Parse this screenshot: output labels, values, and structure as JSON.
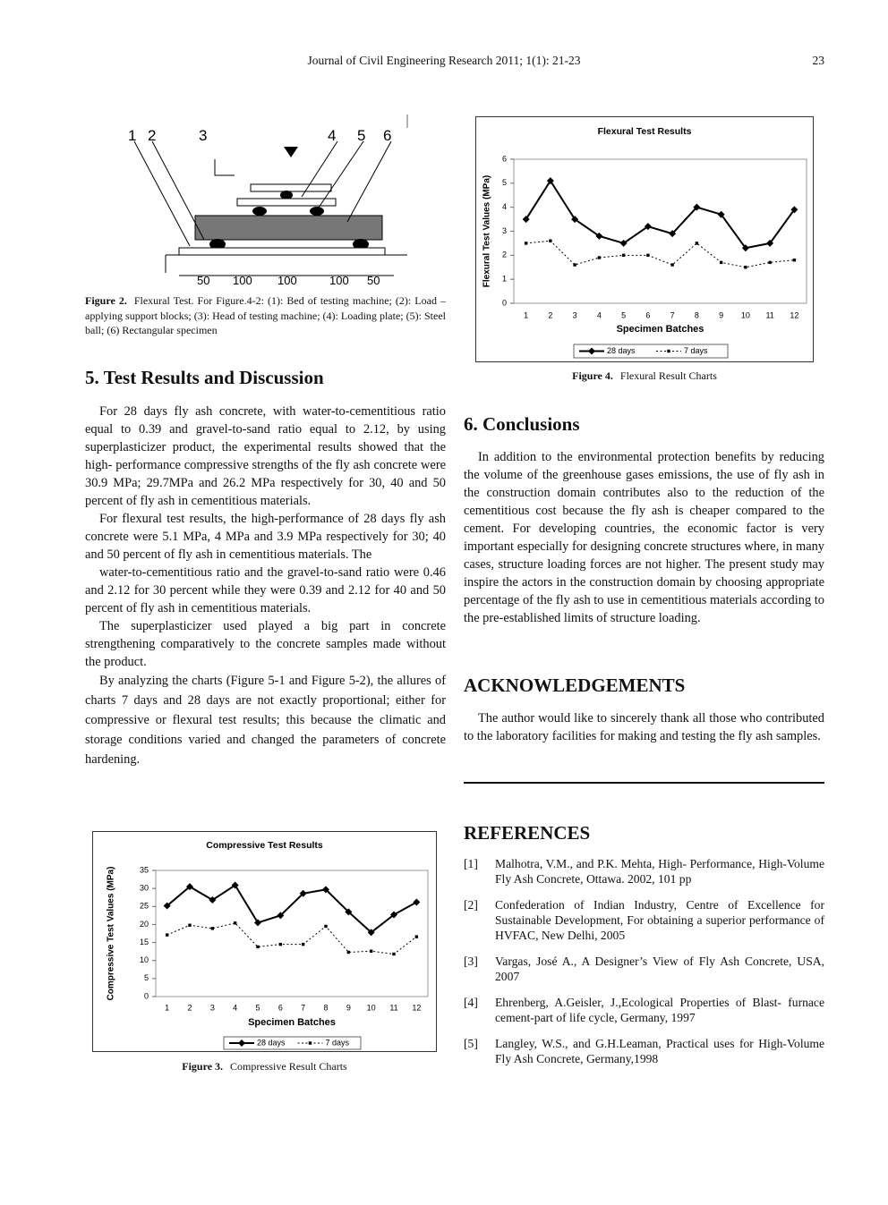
{
  "header": {
    "journal": "Journal of Civil Engineering Research 2011; 1(1): 21-23",
    "page": "23"
  },
  "figure2": {
    "labels": [
      "1",
      "2",
      "3",
      "4",
      "5",
      "6"
    ],
    "dimensions": [
      "50",
      "100",
      "100",
      "100",
      "50"
    ],
    "caption_label": "Figure 2.",
    "caption": "Flexural Test. For Figure.4-2: (1): Bed of testing machine; (2): Load –applying support blocks; (3): Head of testing machine; (4): Loading plate; (5): Steel ball; (6) Rectangular specimen"
  },
  "section5": {
    "heading": "5. Test Results and Discussion",
    "paragraphs": [
      "For 28 days fly ash concrete, with water-to-cementitious ratio equal to 0.39 and gravel-to-sand ratio equal to 2.12, by using superplasticizer product, the experimental results showed that the high- performance compressive strengths of the fly ash concrete were 30.9 MPa; 29.7MPa and 26.2 MPa respectively for 30, 40 and 50 percent of fly ash in cementitious materials.",
      "For flexural test results, the high-performance of 28 days fly ash concrete were 5.1 MPa, 4 MPa and 3.9 MPa respectively for 30; 40 and 50 percent of fly ash in cementitious materials. The",
      "water-to-cementitious ratio and the gravel-to-sand ratio were 0.46 and 2.12 for 30 percent while they were 0.39 and 2.12 for 40 and 50 percent of fly ash in cementitious materials.",
      "The superplasticizer used played a big part in concrete strengthening comparatively to the concrete samples made without the product.",
      "By analyzing the charts (Figure 5-1 and Figure 5-2), the allures of charts 7 days and 28 days are not exactly proportional; either for compressive or flexural test results; this because the climatic and storage conditions varied and changed the parameters of concrete hardening."
    ]
  },
  "figure3": {
    "label": "Figure 3.",
    "caption": "Compressive Result Charts"
  },
  "figure4": {
    "label": "Figure 4.",
    "caption": "Flexural Result Charts"
  },
  "chart_data": [
    {
      "type": "line",
      "title": "Flexural Test Results",
      "xlabel": "Specimen Batches",
      "ylabel": "Flexural Test Values (MPa)",
      "categories": [
        "1",
        "2",
        "3",
        "4",
        "5",
        "6",
        "7",
        "8",
        "9",
        "10",
        "11",
        "12"
      ],
      "ylim": [
        0,
        6
      ],
      "yticks": [
        0,
        1,
        2,
        3,
        4,
        5,
        6
      ],
      "grid": false,
      "legend": "bottom",
      "series": [
        {
          "name": "28 days",
          "color": "#000000",
          "marker": "diamond",
          "dash": "solid",
          "values": [
            3.5,
            5.1,
            3.5,
            2.8,
            2.5,
            3.2,
            2.9,
            4.0,
            3.7,
            2.3,
            2.5,
            3.9
          ]
        },
        {
          "name": "7 days",
          "color": "#000000",
          "marker": "square",
          "dash": "dotted",
          "values": [
            2.5,
            2.6,
            1.6,
            1.9,
            2.0,
            2.0,
            1.6,
            2.5,
            1.7,
            1.5,
            1.7,
            1.8
          ]
        }
      ]
    },
    {
      "type": "line",
      "title": "Compressive Test Results",
      "xlabel": "Specimen Batches",
      "ylabel": "Compressive Test Values (MPa)",
      "categories": [
        "1",
        "2",
        "3",
        "4",
        "5",
        "6",
        "7",
        "8",
        "9",
        "10",
        "11",
        "12"
      ],
      "ylim": [
        0,
        35
      ],
      "yticks": [
        0,
        5,
        10,
        15,
        20,
        25,
        30,
        35
      ],
      "grid": false,
      "legend": "bottom",
      "series": [
        {
          "name": "28 days",
          "color": "#000000",
          "marker": "diamond",
          "dash": "solid",
          "values": [
            25.2,
            30.5,
            26.8,
            30.9,
            20.5,
            22.5,
            28.6,
            29.7,
            23.5,
            17.8,
            22.7,
            26.2
          ]
        },
        {
          "name": "7 days",
          "color": "#000000",
          "marker": "square",
          "dash": "dotted",
          "values": [
            17.1,
            19.8,
            18.9,
            20.4,
            13.8,
            14.5,
            14.5,
            19.5,
            12.3,
            12.6,
            11.8,
            16.6
          ]
        }
      ]
    }
  ],
  "section6": {
    "heading": "6. Conclusions",
    "paragraphs": [
      "In addition to the environmental protection benefits by reducing the volume of the greenhouse gases emissions, the use of fly ash in the construction domain contributes also to the reduction of the cementitious cost because the fly ash is cheaper compared to the cement. For developing countries, the economic factor is very important especially for designing concrete structures where, in many cases, structure loading forces are not higher. The present study may inspire the actors in the construction domain by choosing appropriate percentage of the fly ash to use in cementitious materials according to the pre-established limits of structure loading."
    ]
  },
  "acknowledgements": {
    "heading": "ACKNOWLEDGEMENTS",
    "paragraphs": [
      "The author would like to sincerely thank all those who contributed to the laboratory facilities for making and testing the fly ash samples."
    ]
  },
  "references": {
    "heading": "REFERENCES",
    "items": [
      {
        "num": "[1]",
        "text": "Malhotra, V.M., and P.K. Mehta, High- Performance, High-Volume Fly Ash Concrete, Ottawa. 2002, 101 pp"
      },
      {
        "num": "[2]",
        "text": "Confederation of Indian Industry, Centre of Excellence for Sustainable Development, For obtaining a superior performance of HVFAC, New Delhi, 2005"
      },
      {
        "num": "[3]",
        "text": "Vargas, José A., A Designer’s View of Fly Ash Concrete, USA, 2007"
      },
      {
        "num": "[4]",
        "text": "Ehrenberg, A.Geisler, J.,Ecological Properties of Blast- furnace cement-part of life cycle, Germany, 1997"
      },
      {
        "num": "[5]",
        "text": "Langley, W.S., and G.H.Leaman, Practical uses for High-Volume Fly Ash Concrete, Germany,1998"
      }
    ]
  }
}
